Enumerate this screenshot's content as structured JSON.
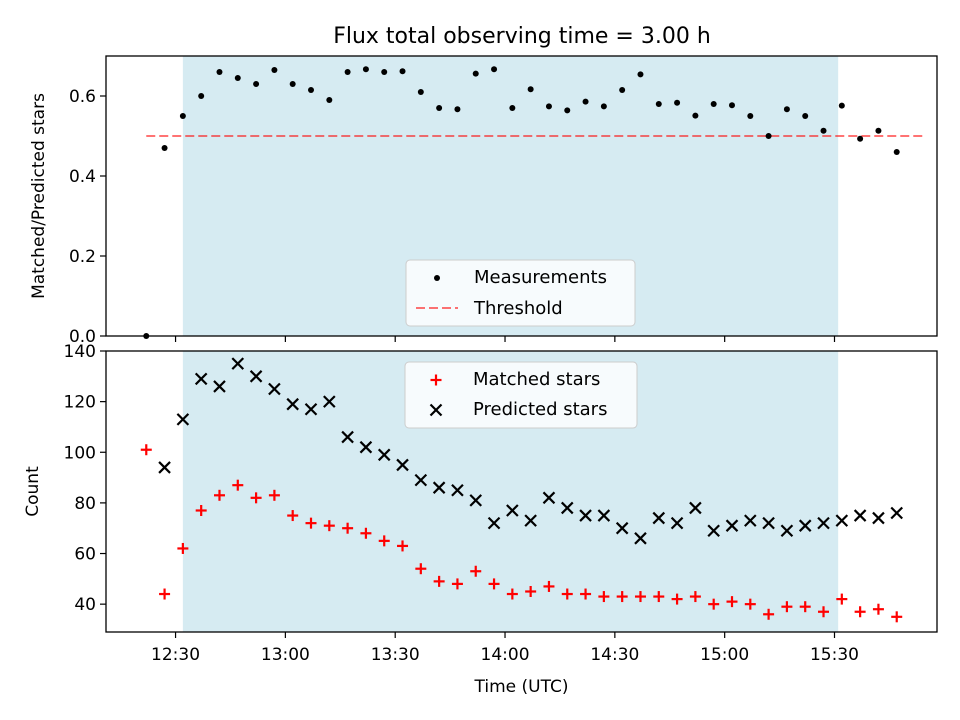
{
  "figure": {
    "title": "Flux total observing time = 3.00 h",
    "xlabel": "Time (UTC)"
  },
  "colors": {
    "span": "#add8e6",
    "matched": "#ff0000",
    "predicted": "#000000",
    "measurement": "#000000",
    "threshold": "#ff0000"
  },
  "chart_data": [
    {
      "type": "scatter",
      "ylabel": "Matched/Predicted stars",
      "ylim": [
        0.0,
        0.7
      ],
      "yticks": [
        0.0,
        0.2,
        0.4,
        0.6
      ],
      "ytick_labels": [
        "0.0",
        "0.2",
        "0.4",
        "0.6"
      ],
      "xlim": [
        "12:11",
        "15:58"
      ],
      "xticks": [
        "12:30",
        "13:00",
        "13:30",
        "14:00",
        "14:30",
        "15:00",
        "15:30"
      ],
      "shaded_span": [
        "12:32",
        "15:31"
      ],
      "threshold": {
        "y": 0.5,
        "x_range": [
          "12:22",
          "15:55"
        ],
        "style": "dashed"
      },
      "legend_position": "lower-center",
      "legend": [
        "Measurements",
        "Threshold"
      ],
      "series": [
        {
          "name": "Measurements",
          "x": [
            "12:22",
            "12:27",
            "12:32",
            "12:37",
            "12:42",
            "12:47",
            "12:52",
            "12:57",
            "13:02",
            "13:07",
            "13:12",
            "13:17",
            "13:22",
            "13:27",
            "13:32",
            "13:37",
            "13:42",
            "13:47",
            "13:52",
            "13:57",
            "14:02",
            "14:07",
            "14:12",
            "14:17",
            "14:22",
            "14:27",
            "14:32",
            "14:37",
            "14:42",
            "14:47",
            "14:52",
            "14:57",
            "15:02",
            "15:07",
            "15:12",
            "15:17",
            "15:22",
            "15:27",
            "15:32",
            "15:37",
            "15:42",
            "15:47"
          ],
          "y": [
            0.0,
            0.47,
            0.55,
            0.6,
            0.66,
            0.645,
            0.63,
            0.665,
            0.63,
            0.615,
            0.59,
            0.66,
            0.667,
            0.66,
            0.662,
            0.61,
            0.57,
            0.567,
            0.656,
            0.667,
            0.57,
            0.617,
            0.574,
            0.564,
            0.586,
            0.574,
            0.615,
            0.654,
            0.58,
            0.583,
            0.551,
            0.58,
            0.577,
            0.55,
            0.5,
            0.567,
            0.55,
            0.513,
            0.576,
            0.493,
            0.513,
            0.46
          ]
        }
      ]
    },
    {
      "type": "scatter",
      "ylabel": "Count",
      "ylim": [
        29,
        140
      ],
      "yticks": [
        40,
        60,
        80,
        100,
        120,
        140
      ],
      "ytick_labels": [
        "40",
        "60",
        "80",
        "100",
        "120",
        "140"
      ],
      "xlabel": "Time (UTC)",
      "xlim": [
        "12:11",
        "15:58"
      ],
      "xticks": [
        "12:30",
        "13:00",
        "13:30",
        "14:00",
        "14:30",
        "15:00",
        "15:30"
      ],
      "xtick_labels": [
        "12:30",
        "13:00",
        "13:30",
        "14:00",
        "14:30",
        "15:00",
        "15:30"
      ],
      "shaded_span": [
        "12:32",
        "15:31"
      ],
      "legend_position": "top-center",
      "legend": [
        "Matched stars",
        "Predicted stars"
      ],
      "series": [
        {
          "name": "Matched stars",
          "marker": "plus",
          "x": [
            "12:22",
            "12:27",
            "12:32",
            "12:37",
            "12:42",
            "12:47",
            "12:52",
            "12:57",
            "13:02",
            "13:07",
            "13:12",
            "13:17",
            "13:22",
            "13:27",
            "13:32",
            "13:37",
            "13:42",
            "13:47",
            "13:52",
            "13:57",
            "14:02",
            "14:07",
            "14:12",
            "14:17",
            "14:22",
            "14:27",
            "14:32",
            "14:37",
            "14:42",
            "14:47",
            "14:52",
            "14:57",
            "15:02",
            "15:07",
            "15:12",
            "15:17",
            "15:22",
            "15:27",
            "15:32",
            "15:37",
            "15:42",
            "15:47"
          ],
          "y": [
            101,
            44,
            62,
            77,
            83,
            87,
            82,
            83,
            75,
            72,
            71,
            70,
            68,
            65,
            63,
            54,
            49,
            48,
            53,
            48,
            44,
            45,
            47,
            44,
            44,
            43,
            43,
            43,
            43,
            42,
            43,
            40,
            41,
            40,
            36,
            39,
            39,
            37,
            42,
            37,
            38,
            35
          ]
        },
        {
          "name": "Predicted stars",
          "marker": "x",
          "x": [
            "12:27",
            "12:32",
            "12:37",
            "12:42",
            "12:47",
            "12:52",
            "12:57",
            "13:02",
            "13:07",
            "13:12",
            "13:17",
            "13:22",
            "13:27",
            "13:32",
            "13:37",
            "13:42",
            "13:47",
            "13:52",
            "13:57",
            "14:02",
            "14:07",
            "14:12",
            "14:17",
            "14:22",
            "14:27",
            "14:32",
            "14:37",
            "14:42",
            "14:47",
            "14:52",
            "14:57",
            "15:02",
            "15:07",
            "15:12",
            "15:17",
            "15:22",
            "15:27",
            "15:32",
            "15:37",
            "15:42",
            "15:47"
          ],
          "y": [
            94,
            113,
            129,
            126,
            135,
            130,
            125,
            119,
            117,
            120,
            106,
            102,
            99,
            95,
            89,
            86,
            85,
            81,
            72,
            77,
            73,
            82,
            78,
            75,
            75,
            70,
            66,
            74,
            72,
            78,
            69,
            71,
            73,
            72,
            69,
            71,
            72,
            73,
            75,
            74,
            76
          ]
        }
      ]
    }
  ]
}
